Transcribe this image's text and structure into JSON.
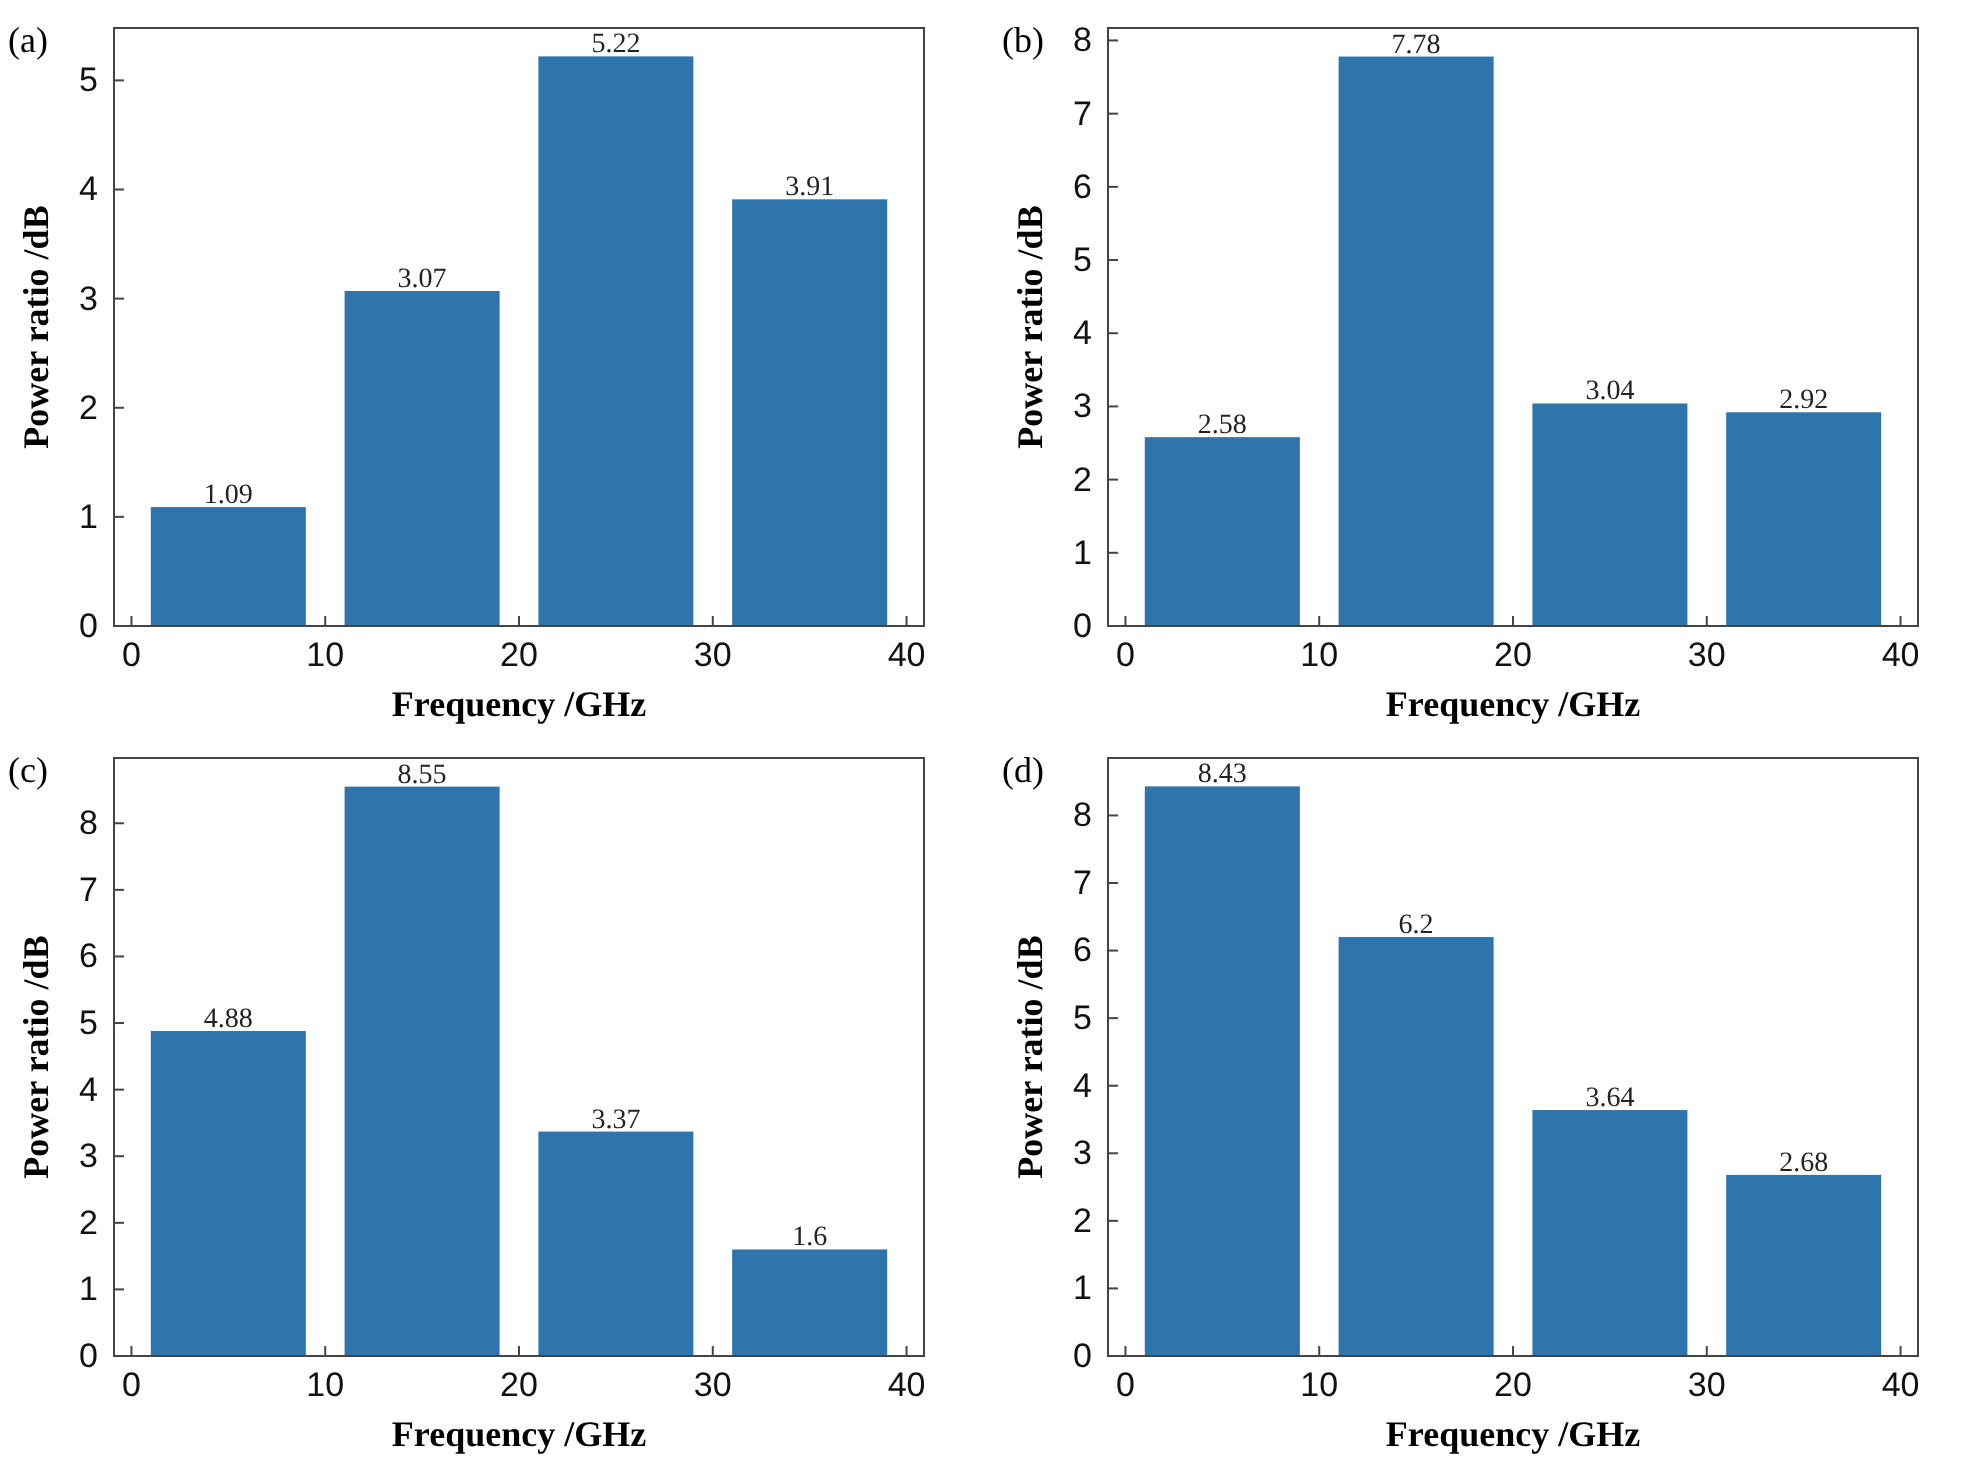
{
  "chart_data": [
    {
      "type": "bar",
      "title": "(a)",
      "xlabel": "Frequency /GHz",
      "ylabel": "Power ratio /dB",
      "x": [
        5,
        15,
        25,
        35
      ],
      "values": [
        1.09,
        3.07,
        5.22,
        3.91
      ],
      "color": "#2e75ad",
      "data_labels": true,
      "xlim": [
        -0.9,
        40.9
      ],
      "xticks": [
        0,
        10,
        20,
        30,
        40
      ],
      "ylim": [
        0,
        5.48
      ],
      "yticks": [
        0,
        1,
        2,
        3,
        4,
        5
      ],
      "grid": false
    },
    {
      "type": "bar",
      "title": "(b)",
      "xlabel": "Frequency /GHz",
      "ylabel": "Power ratio /dB",
      "x": [
        5,
        15,
        25,
        35
      ],
      "values": [
        2.58,
        7.78,
        3.04,
        2.92
      ],
      "color": "#2e75ad",
      "data_labels": true,
      "xlim": [
        -0.9,
        40.9
      ],
      "xticks": [
        0,
        10,
        20,
        30,
        40
      ],
      "ylim": [
        0,
        8.17
      ],
      "yticks": [
        0,
        1,
        2,
        3,
        4,
        5,
        6,
        7,
        8
      ],
      "grid": false
    },
    {
      "type": "bar",
      "title": "(c)",
      "xlabel": "Frequency /GHz",
      "ylabel": "Power ratio /dB",
      "x": [
        5,
        15,
        25,
        35
      ],
      "values": [
        4.88,
        8.55,
        3.37,
        1.6
      ],
      "color": "#2e75ad",
      "data_labels": true,
      "xlim": [
        -0.9,
        40.9
      ],
      "xticks": [
        0,
        10,
        20,
        30,
        40
      ],
      "ylim": [
        0,
        8.98
      ],
      "yticks": [
        0,
        1,
        2,
        3,
        4,
        5,
        6,
        7,
        8
      ],
      "grid": false
    },
    {
      "type": "bar",
      "title": "(d)",
      "xlabel": "Frequency /GHz",
      "ylabel": "Power ratio /dB",
      "x": [
        5,
        15,
        25,
        35
      ],
      "values": [
        8.43,
        6.2,
        3.64,
        2.68
      ],
      "color": "#2e75ad",
      "data_labels": true,
      "xlim": [
        -0.9,
        40.9
      ],
      "xticks": [
        0,
        10,
        20,
        30,
        40
      ],
      "ylim": [
        0,
        8.85
      ],
      "yticks": [
        0,
        1,
        2,
        3,
        4,
        5,
        6,
        7,
        8
      ],
      "grid": false
    }
  ]
}
